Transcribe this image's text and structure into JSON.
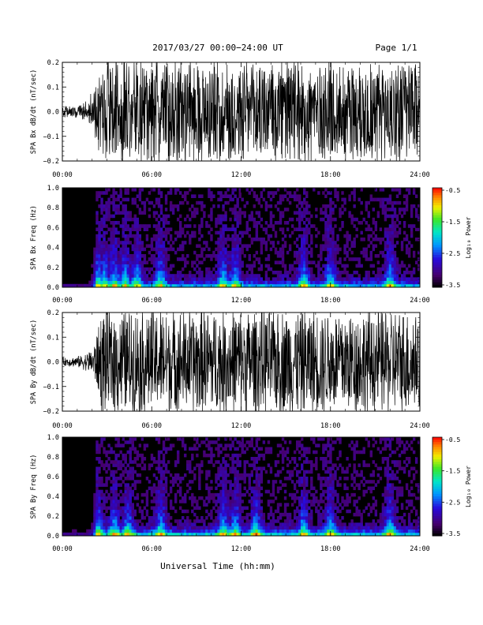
{
  "header": {
    "title": "2017/03/27  00:00−24:00 UT",
    "page": "Page 1/1"
  },
  "x_axis": {
    "title": "Universal Time (hh:mm)",
    "ticks": [
      "00:00",
      "06:00",
      "12:00",
      "18:00",
      "24:00"
    ]
  },
  "colorbar": {
    "label": "Log₁₀ Power",
    "ticks": [
      "-0.5",
      "-1.5",
      "-2.5",
      "-3.5"
    ]
  },
  "chart_data": [
    {
      "type": "line",
      "title": "",
      "ylabel": "SPA Bx dB/dt (nT/sec)",
      "xlabel": "",
      "xlim": [
        "00:00",
        "24:00"
      ],
      "ylim": [
        -0.2,
        0.2
      ],
      "yticks": [
        "0.2",
        "0.1",
        "0.0",
        "−0.1",
        "−0.2"
      ],
      "description_of_series": "dense induction magnetometer waveform",
      "amplitude_envelope": {
        "hours": [
          0,
          1,
          1.5,
          2,
          2.3,
          2.6,
          3,
          4,
          6,
          8,
          10,
          12,
          14,
          16,
          18,
          20,
          22,
          24
        ],
        "peak_abs_nT_per_s": [
          0.02,
          0.025,
          0.04,
          0.07,
          0.12,
          0.2,
          0.2,
          0.2,
          0.2,
          0.2,
          0.2,
          0.2,
          0.2,
          0.2,
          0.2,
          0.2,
          0.2,
          0.2
        ]
      }
    },
    {
      "type": "heatmap",
      "title": "",
      "ylabel": "SPA Bx Freq (Hz)",
      "xlim": [
        "00:00",
        "24:00"
      ],
      "ylim": [
        0.0,
        1.0
      ],
      "yticks": [
        "1.0",
        "0.8",
        "0.6",
        "0.4",
        "0.2",
        "0.0"
      ],
      "zlabel": "Log₁₀ Power",
      "zlim": [
        -3.5,
        -0.5
      ],
      "enhancement_hours": [
        2.4,
        2.8,
        3.5,
        4.2,
        5.0,
        6.6,
        10.8,
        11.6,
        16.2,
        18.0,
        22.0
      ],
      "low_freq_band_power": -2.0
    },
    {
      "type": "line",
      "title": "",
      "ylabel": "SPA By dB/dt (nT/sec)",
      "xlabel": "",
      "xlim": [
        "00:00",
        "24:00"
      ],
      "ylim": [
        -0.2,
        0.2
      ],
      "yticks": [
        "0.2",
        "0.1",
        "0.0",
        "−0.1",
        "−0.2"
      ],
      "description_of_series": "dense induction magnetometer waveform",
      "amplitude_envelope": {
        "hours": [
          0,
          1,
          1.5,
          2,
          2.3,
          2.6,
          3,
          4,
          6,
          8,
          10,
          12,
          14,
          16,
          18,
          20,
          22,
          24
        ],
        "peak_abs_nT_per_s": [
          0.015,
          0.02,
          0.03,
          0.05,
          0.1,
          0.2,
          0.2,
          0.2,
          0.2,
          0.2,
          0.2,
          0.2,
          0.2,
          0.2,
          0.2,
          0.2,
          0.2,
          0.2
        ]
      }
    },
    {
      "type": "heatmap",
      "title": "",
      "ylabel": "SPA By Freq (Hz)",
      "xlim": [
        "00:00",
        "24:00"
      ],
      "ylim": [
        0.0,
        1.0
      ],
      "yticks": [
        "1.0",
        "0.8",
        "0.6",
        "0.4",
        "0.2",
        "0.0"
      ],
      "zlabel": "Log₁₀ Power",
      "zlim": [
        -3.5,
        -0.5
      ],
      "enhancement_hours": [
        2.4,
        3.5,
        4.4,
        6.6,
        10.8,
        11.6,
        13.0,
        16.2,
        18.0,
        22.0
      ],
      "low_freq_band_power": -1.8
    }
  ]
}
